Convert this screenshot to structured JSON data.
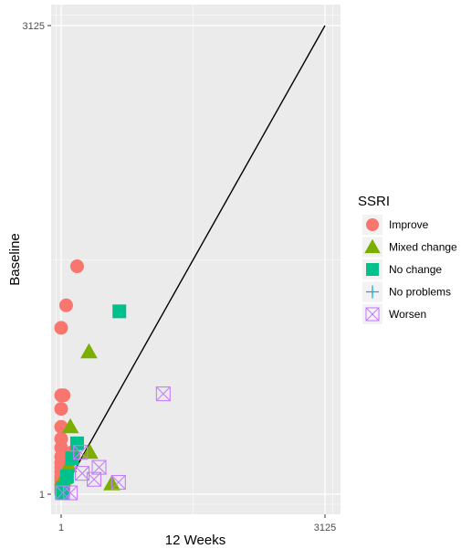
{
  "chart_data": {
    "type": "scatter",
    "xlabel": "12 Weeks",
    "ylabel": "Baseline",
    "xlim": [
      1,
      3125
    ],
    "ylim": [
      1,
      3125
    ],
    "x_ticks": [
      "1",
      "3125"
    ],
    "y_ticks": [
      "1",
      "3125"
    ],
    "grid": true,
    "reference_line": {
      "from": [
        1,
        1
      ],
      "to": [
        3125,
        3125
      ]
    },
    "legend": {
      "title": "SSRI",
      "placement": "right"
    },
    "series": [
      {
        "name": "Improve",
        "shape": "circle",
        "color": "#F8766D",
        "points": [
          [
            1,
            1110
          ],
          [
            60,
            1260
          ],
          [
            190,
            1520
          ],
          [
            1,
            660
          ],
          [
            30,
            660
          ],
          [
            1,
            570
          ],
          [
            1,
            450
          ],
          [
            1,
            370
          ],
          [
            1,
            310
          ],
          [
            1,
            250
          ],
          [
            1,
            210
          ],
          [
            1,
            180
          ],
          [
            1,
            150
          ],
          [
            1,
            120
          ],
          [
            1,
            95
          ],
          [
            1,
            70
          ],
          [
            1,
            45
          ],
          [
            1,
            25
          ],
          [
            1,
            10
          ],
          [
            20,
            250
          ],
          [
            30,
            130
          ],
          [
            25,
            80
          ],
          [
            30,
            40
          ],
          [
            130,
            280
          ],
          [
            110,
            240
          ],
          [
            90,
            210
          ],
          [
            150,
            260
          ]
        ]
      },
      {
        "name": "Mixed change",
        "shape": "triangle",
        "color": "#7CAE00",
        "points": [
          [
            330,
            950
          ],
          [
            110,
            450
          ],
          [
            340,
            280
          ],
          [
            600,
            70
          ],
          [
            90,
            190
          ],
          [
            40,
            110
          ],
          [
            20,
            100
          ]
        ]
      },
      {
        "name": "No change",
        "shape": "square",
        "color": "#00BFC4",
        "points": [
          [
            690,
            1220
          ],
          [
            190,
            340
          ],
          [
            130,
            240
          ],
          [
            70,
            120
          ],
          [
            20,
            40
          ],
          [
            10,
            10
          ]
        ]
      },
      {
        "name": "No problems",
        "shape": "cross",
        "color": "#00A9FF",
        "points": []
      },
      {
        "name": "Worsen",
        "shape": "boxx",
        "color": "#C77CFF",
        "points": [
          [
            1210,
            670
          ],
          [
            230,
            280
          ],
          [
            450,
            180
          ],
          [
            680,
            80
          ],
          [
            250,
            140
          ],
          [
            390,
            100
          ],
          [
            110,
            10
          ],
          [
            20,
            10
          ]
        ]
      }
    ]
  }
}
